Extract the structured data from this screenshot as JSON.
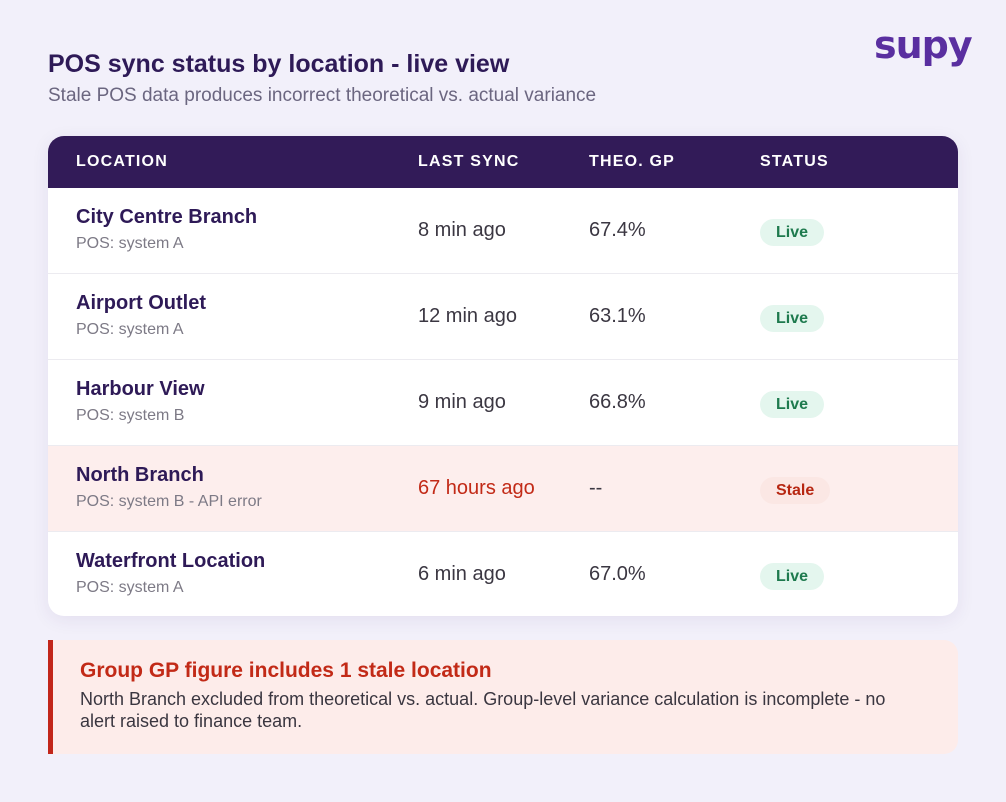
{
  "brand": {
    "logo_text": "supy"
  },
  "header": {
    "title": "POS sync status by location - live view",
    "subtitle": "Stale POS data produces incorrect theoretical vs. actual variance"
  },
  "table": {
    "columns": [
      "LOCATION",
      "LAST SYNC",
      "THEO. GP",
      "STATUS"
    ],
    "rows": [
      {
        "name": "City Centre Branch",
        "pos": "POS: system A",
        "last_sync": "8 min ago",
        "theo_gp": "67.4%",
        "status": "Live"
      },
      {
        "name": "Airport Outlet",
        "pos": "POS: system A",
        "last_sync": "12 min ago",
        "theo_gp": "63.1%",
        "status": "Live"
      },
      {
        "name": "Harbour View",
        "pos": "POS: system B",
        "last_sync": "9 min ago",
        "theo_gp": "66.8%",
        "status": "Live"
      },
      {
        "name": "North Branch",
        "pos": "POS: system B - API error",
        "last_sync": "67 hours ago",
        "theo_gp": "--",
        "status": "Stale"
      },
      {
        "name": "Waterfront Location",
        "pos": "POS: system A",
        "last_sync": "6 min ago",
        "theo_gp": "67.0%",
        "status": "Live"
      }
    ]
  },
  "alert": {
    "title": "Group GP figure includes 1 stale location",
    "body": "North Branch excluded from theoretical vs. actual. Group-level variance calculation is incomplete - no alert raised to finance team."
  },
  "colors": {
    "header_bg": "#321b58",
    "live_badge": "#e4f6ee",
    "stale_badge": "#fbe7e4",
    "stale_row": "#fdeeed",
    "alert_accent": "#c2261a",
    "brand": "#5a2fa0"
  }
}
